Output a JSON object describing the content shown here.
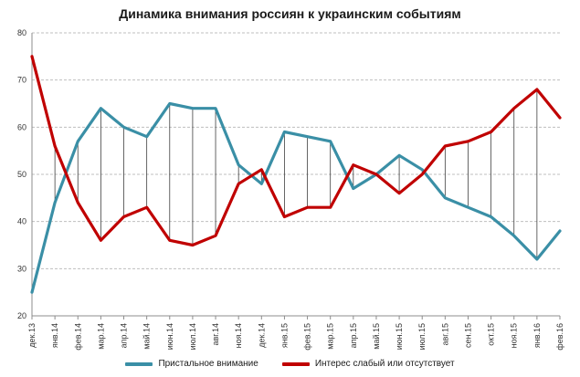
{
  "chart_data": {
    "type": "line",
    "title": "Динамика внимания россиян к украинским событиям",
    "xlabel": "",
    "ylabel": "",
    "ylim": [
      20,
      80
    ],
    "yticks": [
      20,
      30,
      40,
      50,
      60,
      70,
      80
    ],
    "grid": true,
    "legend_position": "bottom",
    "categories": [
      "дек.13",
      "янв.14",
      "фев.14",
      "мар.14",
      "апр.14",
      "май.14",
      "июн.14",
      "июл.14",
      "авг.14",
      "ноя.14",
      "дек.14",
      "янв.15",
      "фев.15",
      "мар.15",
      "апр.15",
      "май.15",
      "июн.15",
      "июл.15",
      "авг.15",
      "сен.15",
      "окт.15",
      "ноя.15",
      "янв.16",
      "фев.16"
    ],
    "series": [
      {
        "name": "Пристальное внимание",
        "color": "#3a8fa6",
        "values": [
          25,
          44,
          57,
          64,
          60,
          58,
          65,
          64,
          64,
          52,
          48,
          59,
          58,
          57,
          47,
          50,
          54,
          51,
          45,
          43,
          41,
          37,
          32,
          38
        ]
      },
      {
        "name": "Интерес слабый или отсутствует",
        "color": "#c00000",
        "values": [
          75,
          56,
          44,
          36,
          41,
          43,
          36,
          35,
          37,
          48,
          51,
          41,
          43,
          43,
          52,
          50,
          46,
          50,
          56,
          57,
          59,
          64,
          68,
          62
        ]
      }
    ]
  }
}
